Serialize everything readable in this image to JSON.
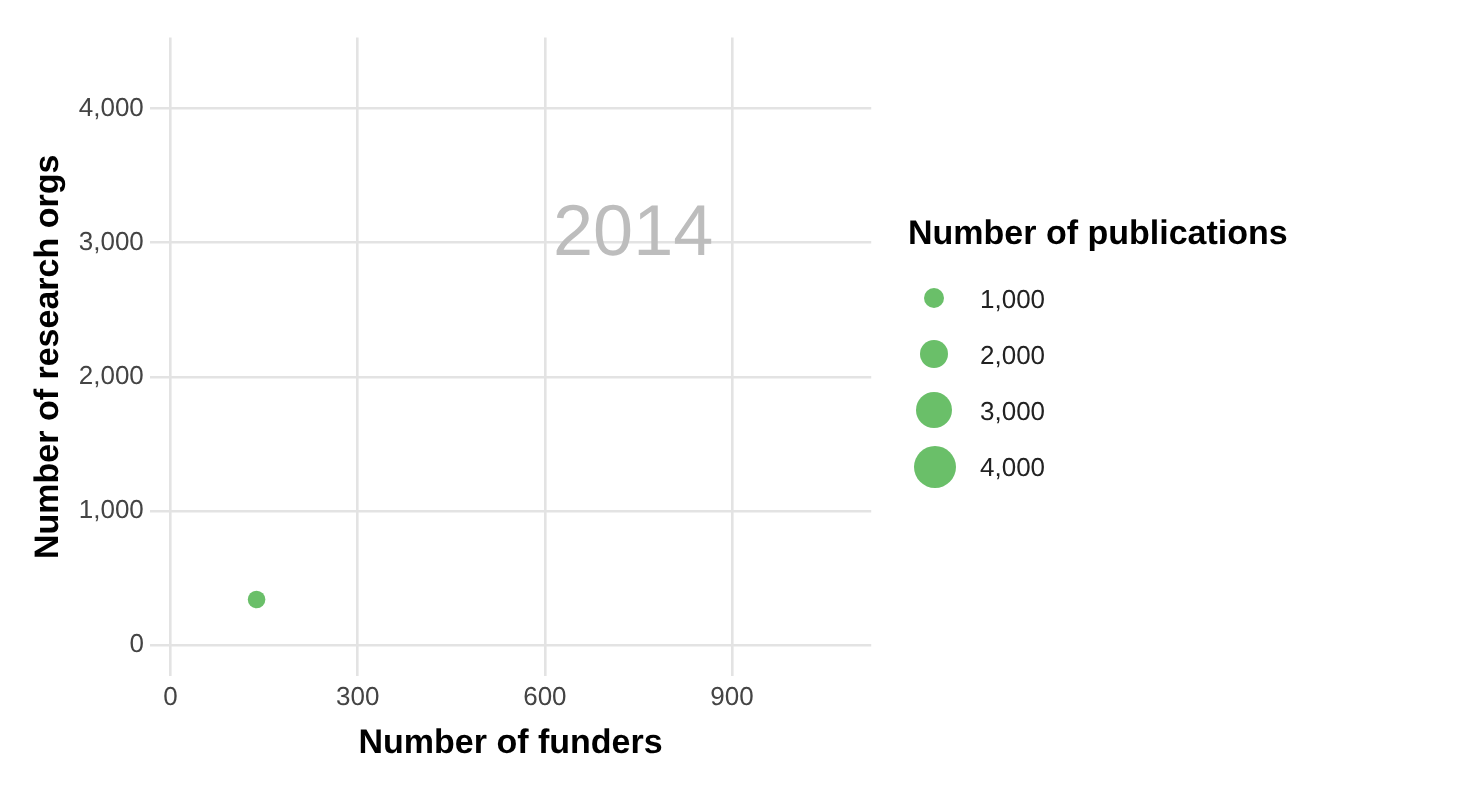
{
  "chart_data": {
    "type": "bubble",
    "xlabel": "Number of funders",
    "ylabel": "Number of research orgs",
    "x": [
      138
    ],
    "values": [
      340
    ],
    "sizes": [
      700
    ],
    "color": "#6abf69",
    "size_legend": [
      {
        "value": 1000,
        "label": "1,000"
      },
      {
        "value": 2000,
        "label": "2,000"
      },
      {
        "value": 3000,
        "label": "3,000"
      },
      {
        "value": 4000,
        "label": "4,000"
      }
    ],
    "legend_title": "Number of publications",
    "xlim": [
      -33,
      1123
    ],
    "xticks": [
      0,
      300,
      600,
      900
    ],
    "ylim": [
      -230,
      4530
    ],
    "yticks": [
      0,
      {
        "value": 1000,
        "label": "1,000"
      },
      {
        "value": 2000,
        "label": "2,000"
      },
      {
        "value": 3000,
        "label": "3,000"
      },
      {
        "value": 4000,
        "label": "4,000"
      }
    ],
    "grid": true,
    "annotations": [
      "2014"
    ]
  }
}
